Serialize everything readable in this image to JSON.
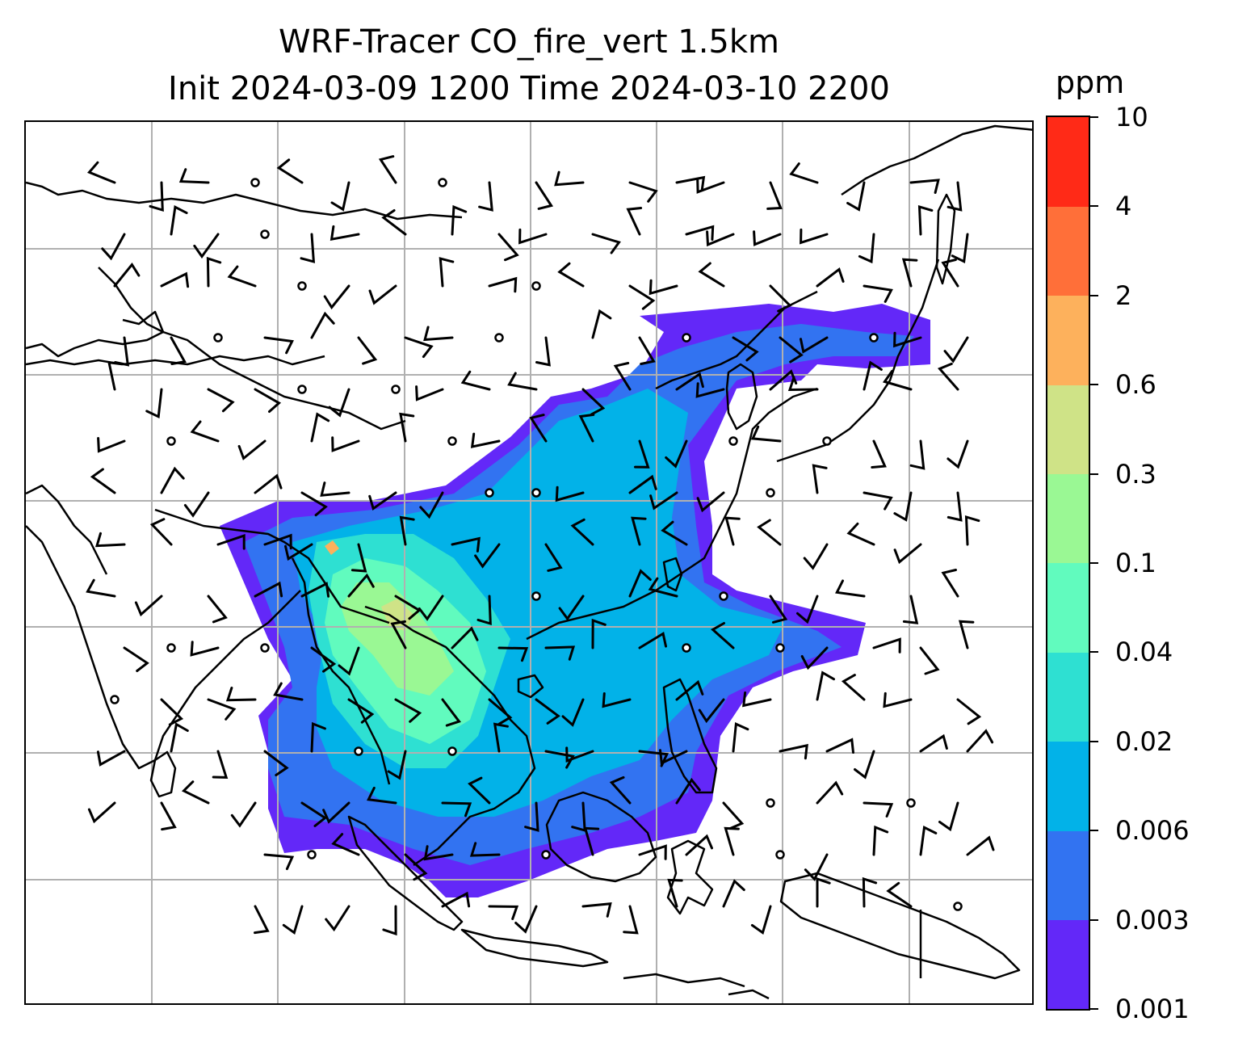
{
  "figure": {
    "title_line1": "WRF-Tracer CO_fire_vert 1.5km",
    "title_line2": "Init 2024-03-09 1200 Time 2024-03-10 2200"
  },
  "colorbar": {
    "unit": "ppm",
    "ticks": [
      "0.001",
      "0.003",
      "0.006",
      "0.02",
      "0.04",
      "0.1",
      "0.3",
      "0.6",
      "2",
      "4",
      "10"
    ],
    "colors": [
      "#6328f8",
      "#3273f1",
      "#02b2e8",
      "#2ee0d2",
      "#61fbbe",
      "#9af894",
      "#cfe387",
      "#fdb15c",
      "#ff6f39",
      "#ff2a17"
    ]
  },
  "map": {
    "projection_grid": true,
    "gridline_color": "#b0b0b0",
    "coastline_color": "#000000",
    "field": "CO_fire_vert",
    "level": "1.5km",
    "wind_barbs": true,
    "plume_levels_ppm": [
      0.001,
      0.003,
      0.006,
      0.02,
      0.04,
      0.1,
      0.3,
      0.6
    ]
  }
}
